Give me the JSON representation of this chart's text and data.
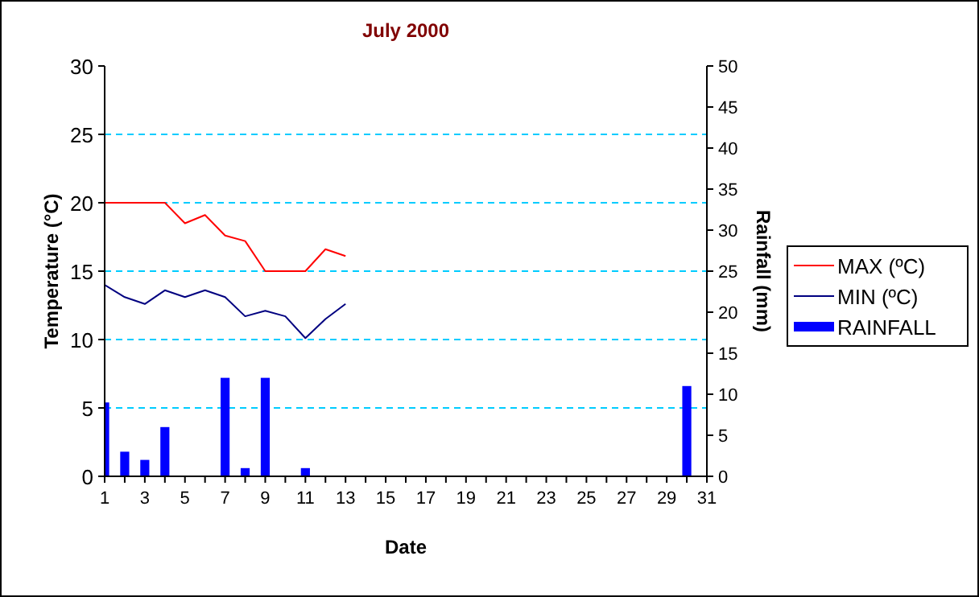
{
  "chart_data": {
    "type": "line",
    "title": "July 2000",
    "xlabel": "Date",
    "ylabel": "Temperature (°C)",
    "y2label": "Rainfall (mm)",
    "x": [
      1,
      2,
      3,
      4,
      5,
      6,
      7,
      8,
      9,
      10,
      11,
      12,
      13,
      14,
      15,
      16,
      17,
      18,
      19,
      20,
      21,
      22,
      23,
      24,
      25,
      26,
      27,
      28,
      29,
      30
    ],
    "xlim": [
      1,
      31
    ],
    "xticks": [
      1,
      {
        "value": 2,
        "label": null
      },
      3,
      {
        "value": 4,
        "label": null
      },
      5,
      {
        "value": 6,
        "label": null
      },
      7,
      {
        "value": 8,
        "label": null
      },
      9,
      {
        "value": 10,
        "label": null
      },
      11,
      {
        "value": 12,
        "label": null
      },
      13,
      {
        "value": 14,
        "label": null
      },
      15,
      {
        "value": 16,
        "label": null
      },
      17,
      {
        "value": 18,
        "label": null
      },
      19,
      {
        "value": 20,
        "label": null
      },
      21,
      {
        "value": 22,
        "label": null
      },
      23,
      {
        "value": 24,
        "label": null
      },
      25,
      {
        "value": 26,
        "label": null
      },
      27,
      {
        "value": 28,
        "label": null
      },
      29,
      {
        "value": 30,
        "label": null
      },
      31
    ],
    "ylim": [
      0,
      30
    ],
    "yticks": [
      0,
      5,
      10,
      15,
      20,
      25,
      30
    ],
    "y2lim": [
      0,
      50
    ],
    "y2ticks": [
      0,
      5,
      10,
      15,
      20,
      25,
      30,
      35,
      40,
      45,
      50
    ],
    "series": [
      {
        "name": "MAX (ºC)",
        "color": "#ff0000",
        "values": [
          20,
          20,
          20,
          20,
          18.5,
          19.1,
          17.6,
          17.2,
          15,
          15,
          15,
          16.6,
          16.1,
          null,
          null,
          null,
          null,
          null,
          null,
          null,
          null,
          null,
          null,
          null,
          null,
          null,
          null,
          null,
          null,
          null
        ]
      },
      {
        "name": "MIN (ºC)",
        "color": "#000080",
        "values": [
          14,
          13.1,
          12.6,
          13.6,
          13.1,
          13.6,
          13.1,
          11.7,
          12.1,
          11.7,
          10.1,
          11.5,
          12.6,
          null,
          null,
          null,
          null,
          null,
          null,
          null,
          null,
          null,
          null,
          null,
          null,
          null,
          null,
          null,
          null,
          null
        ]
      },
      {
        "name": "RAINFALL",
        "type": "bar",
        "axis": "y2",
        "color": "#0000ff",
        "values": [
          9,
          3,
          2,
          6,
          0,
          0,
          12,
          1,
          12,
          0,
          1,
          0,
          0,
          0,
          0,
          0,
          0,
          0,
          0,
          0,
          0,
          0,
          0,
          0,
          0,
          0,
          0,
          0,
          0,
          11
        ]
      }
    ],
    "grid": "y",
    "legend": "right",
    "marker": "none",
    "line_style": "solid"
  }
}
